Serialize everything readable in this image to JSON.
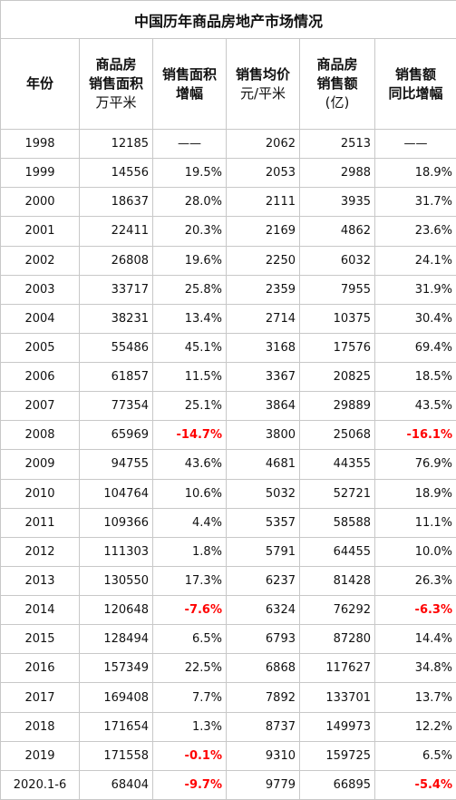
{
  "title": "中国历年商品房地产市场情况",
  "header": [
    {
      "lines": [
        "年份"
      ]
    },
    {
      "lines": [
        "商品房",
        "销售面积"
      ],
      "unit": "万平米"
    },
    {
      "lines": [
        "销售面积",
        "增幅"
      ]
    },
    {
      "lines": [
        "销售均价"
      ],
      "unit": "元/平米"
    },
    {
      "lines": [
        "商品房",
        "销售额"
      ],
      "unit": "(亿)"
    },
    {
      "lines": [
        "销售额",
        "同比增幅"
      ]
    }
  ],
  "rows": [
    [
      "1998",
      "12185",
      "——",
      "2062",
      "2513",
      "——"
    ],
    [
      "1999",
      "14556",
      "19.5%",
      "2053",
      "2988",
      "18.9%"
    ],
    [
      "2000",
      "18637",
      "28.0%",
      "2111",
      "3935",
      "31.7%"
    ],
    [
      "2001",
      "22411",
      "20.3%",
      "2169",
      "4862",
      "23.6%"
    ],
    [
      "2002",
      "26808",
      "19.6%",
      "2250",
      "6032",
      "24.1%"
    ],
    [
      "2003",
      "33717",
      "25.8%",
      "2359",
      "7955",
      "31.9%"
    ],
    [
      "2004",
      "38231",
      "13.4%",
      "2714",
      "10375",
      "30.4%"
    ],
    [
      "2005",
      "55486",
      "45.1%",
      "3168",
      "17576",
      "69.4%"
    ],
    [
      "2006",
      "61857",
      "11.5%",
      "3367",
      "20825",
      "18.5%"
    ],
    [
      "2007",
      "77354",
      "25.1%",
      "3864",
      "29889",
      "43.5%"
    ],
    [
      "2008",
      "65969",
      "-14.7%",
      "3800",
      "25068",
      "-16.1%"
    ],
    [
      "2009",
      "94755",
      "43.6%",
      "4681",
      "44355",
      "76.9%"
    ],
    [
      "2010",
      "104764",
      "10.6%",
      "5032",
      "52721",
      "18.9%"
    ],
    [
      "2011",
      "109366",
      "4.4%",
      "5357",
      "58588",
      "11.1%"
    ],
    [
      "2012",
      "111303",
      "1.8%",
      "5791",
      "64455",
      "10.0%"
    ],
    [
      "2013",
      "130550",
      "17.3%",
      "6237",
      "81428",
      "26.3%"
    ],
    [
      "2014",
      "120648",
      "-7.6%",
      "6324",
      "76292",
      "-6.3%"
    ],
    [
      "2015",
      "128494",
      "6.5%",
      "6793",
      "87280",
      "14.4%"
    ],
    [
      "2016",
      "157349",
      "22.5%",
      "6868",
      "117627",
      "34.8%"
    ],
    [
      "2017",
      "169408",
      "7.7%",
      "7892",
      "133701",
      "13.7%"
    ],
    [
      "2018",
      "171654",
      "1.3%",
      "8737",
      "149973",
      "12.2%"
    ],
    [
      "2019",
      "171558",
      "-0.1%",
      "9310",
      "159725",
      "6.5%"
    ],
    [
      "2020.1-6",
      "68404",
      "-9.7%",
      "9779",
      "66895",
      "-5.4%"
    ]
  ]
}
